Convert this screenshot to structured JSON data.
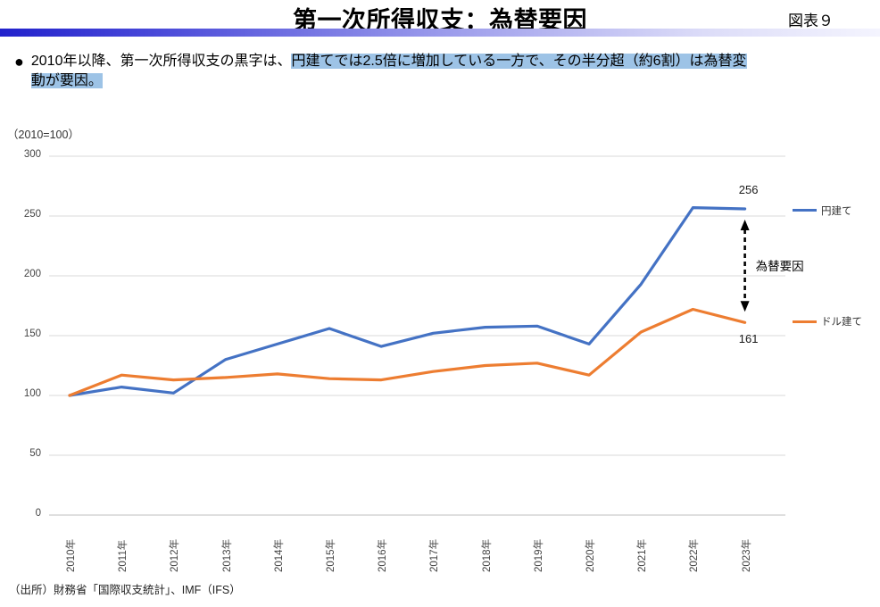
{
  "header": {
    "title": "第一次所得収支：為替要因",
    "figure_label": "図表９"
  },
  "bullet": {
    "marker": "●",
    "text_plain": "2010年以降、第一次所得収支の黒字は、",
    "text_highlight_line1": "円建てでは2.5倍に増加している一方で、その半分超（約6割）は為替変",
    "text_highlight_line2": "動が要因。"
  },
  "chart_data": {
    "type": "line",
    "title": "",
    "unit_label": "（2010=100）",
    "xlabel": "",
    "ylabel": "",
    "ylim": [
      0,
      300
    ],
    "ytick_step": 50,
    "yticks": [
      0,
      50,
      100,
      150,
      200,
      250,
      300
    ],
    "grid": true,
    "legend_position": "right",
    "categories": [
      "2010年",
      "2011年",
      "2012年",
      "2013年",
      "2014年",
      "2015年",
      "2016年",
      "2017年",
      "2018年",
      "2019年",
      "2020年",
      "2021年",
      "2022年",
      "2023年"
    ],
    "series": [
      {
        "name": "円建て",
        "color": "#4472C4",
        "values": [
          100,
          107,
          102,
          130,
          143,
          156,
          141,
          152,
          157,
          158,
          143,
          193,
          257,
          256
        ]
      },
      {
        "name": "ドル建て",
        "color": "#ED7D31",
        "values": [
          100,
          117,
          113,
          115,
          118,
          114,
          113,
          120,
          125,
          127,
          117,
          153,
          172,
          161
        ]
      }
    ],
    "annotations": {
      "end_value_top": "256",
      "end_value_bottom": "161",
      "arrow_label": "為替要因"
    }
  },
  "source": "（出所）財務省「国際収支統計」、IMF（IFS）",
  "colors": {
    "grid": "#D9D9D9",
    "axis": "#BFBFBF",
    "highlight": "#9DC3E6",
    "series_jpy": "#4472C4",
    "series_usd": "#ED7D31",
    "arrow": "#000000"
  }
}
